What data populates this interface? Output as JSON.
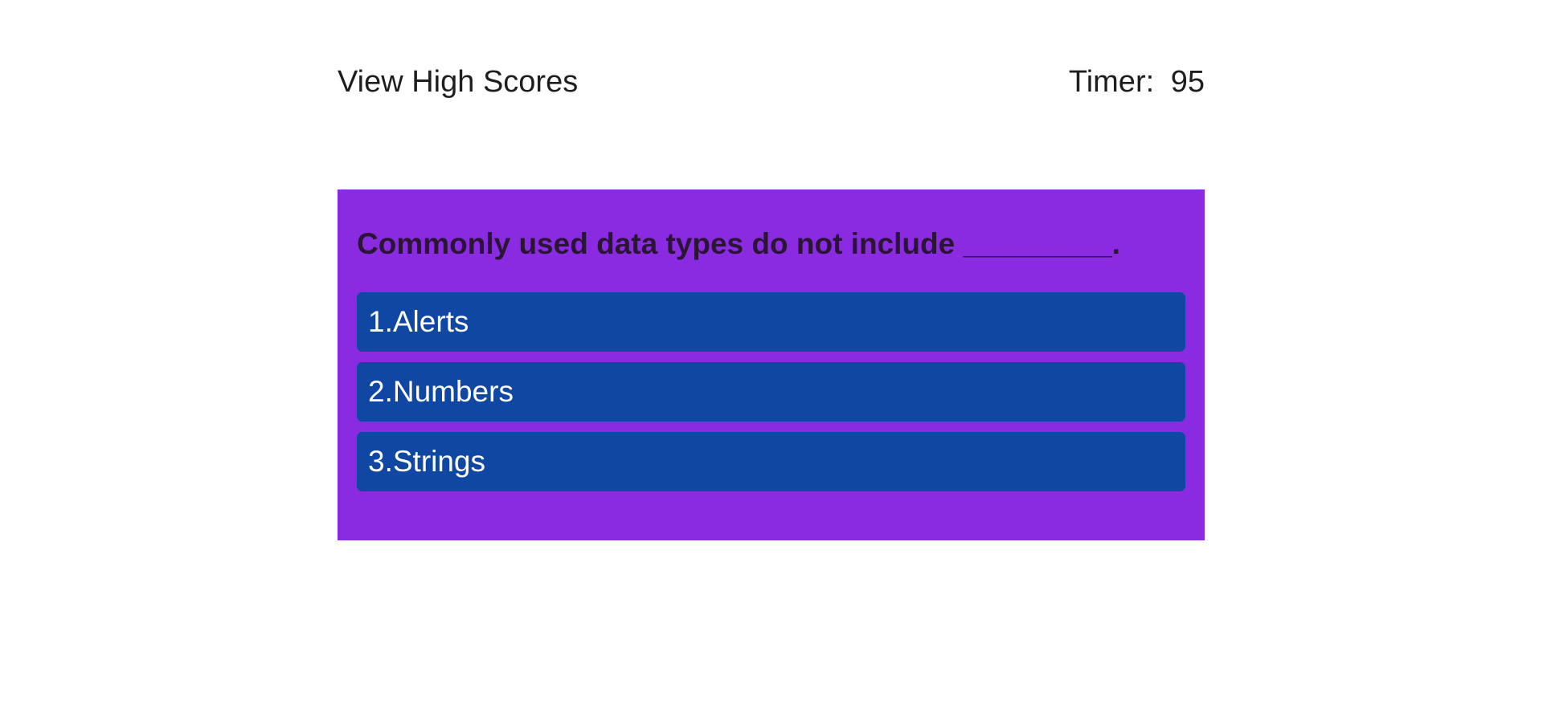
{
  "header": {
    "high_scores_link": "View High Scores",
    "timer_label": "Timer:",
    "timer_value": "95"
  },
  "quiz": {
    "question": "Commonly used data types do not include _________.",
    "answers": [
      {
        "label": "1.Alerts"
      },
      {
        "label": "2.Numbers"
      },
      {
        "label": "3.Strings"
      }
    ]
  },
  "colors": {
    "card_background": "#8a2be2",
    "answer_background": "#0f47a3",
    "answer_text": "#ffffff",
    "question_text": "#2b1535"
  }
}
